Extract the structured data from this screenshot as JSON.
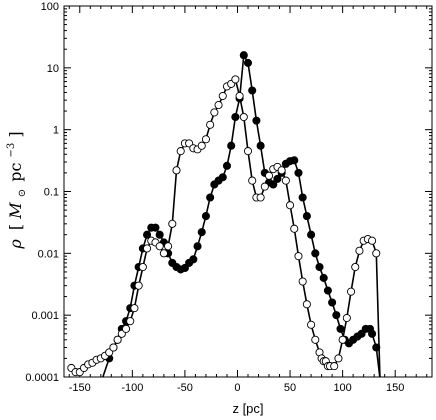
{
  "chart_data": {
    "type": "line",
    "title": "",
    "xlabel": "z [pc]",
    "ylabel_parts": {
      "rho": "ρ",
      "open": "[",
      "m": "M",
      "sun": "⊙",
      "pc": "pc",
      "exp": "−3",
      "close": "]"
    },
    "xlim": [
      -165,
      185
    ],
    "ylim": [
      0.0001,
      100
    ],
    "yscale": "log",
    "grid": false,
    "legend": "none",
    "xticks": [
      -150,
      -100,
      -50,
      0,
      50,
      100,
      150
    ],
    "xtick_labels": [
      "-150",
      "-100",
      "-50",
      "0",
      "50",
      "100",
      "150"
    ],
    "yticks": [
      0.0001,
      0.001,
      0.01,
      0.1,
      1,
      10,
      100
    ],
    "ytick_labels": [
      "0.0001",
      "0.001",
      "0.01",
      "0.1",
      "1",
      "10",
      "100"
    ],
    "series": [
      {
        "marker": "filled",
        "color": "#000000",
        "x": [
          -130,
          -122,
          -118,
          -114,
          -110,
          -106,
          -102,
          -98,
          -94,
          -90,
          -86,
          -82,
          -78,
          -74,
          -70,
          -66,
          -62,
          -58,
          -54,
          -50,
          -46,
          -42,
          -38,
          -34,
          -30,
          -26,
          -22,
          -18,
          -14,
          -10,
          -6,
          -2,
          2,
          6,
          10,
          14,
          18,
          22,
          26,
          30,
          34,
          38,
          42,
          46,
          50,
          54,
          58,
          62,
          66,
          70,
          74,
          78,
          82,
          86,
          90,
          94,
          98,
          102,
          106,
          110,
          114,
          118,
          122,
          126,
          128,
          132,
          136
        ],
        "y": [
          8e-05,
          0.0002,
          0.0003,
          0.0004,
          0.0006,
          0.0008,
          0.0013,
          0.003,
          0.006,
          0.012,
          0.02,
          0.026,
          0.026,
          0.02,
          0.015,
          0.01,
          0.007,
          0.006,
          0.0055,
          0.0058,
          0.007,
          0.008,
          0.013,
          0.022,
          0.04,
          0.08,
          0.13,
          0.15,
          0.17,
          0.26,
          0.55,
          1.6,
          3.2,
          16,
          12,
          4.3,
          1.4,
          0.55,
          0.2,
          0.14,
          0.13,
          0.16,
          0.2,
          0.28,
          0.31,
          0.32,
          0.2,
          0.08,
          0.04,
          0.02,
          0.01,
          0.006,
          0.004,
          0.0025,
          0.0016,
          0.001,
          0.0006,
          0.0004,
          0.00035,
          0.0004,
          0.00045,
          0.0005,
          0.0006,
          0.0006,
          0.0005,
          0.0003,
          8e-05
        ]
      },
      {
        "marker": "open",
        "color": "#000000",
        "x": [
          -158,
          -154,
          -150,
          -146,
          -142,
          -138,
          -134,
          -130,
          -126,
          -122,
          -118,
          -114,
          -110,
          -106,
          -102,
          -98,
          -94,
          -90,
          -86,
          -82,
          -78,
          -74,
          -70,
          -66,
          -62,
          -58,
          -54,
          -50,
          -46,
          -42,
          -38,
          -34,
          -30,
          -26,
          -22,
          -18,
          -14,
          -10,
          -6,
          -2,
          2,
          6,
          10,
          14,
          18,
          22,
          26,
          30,
          34,
          38,
          42,
          46,
          50,
          54,
          58,
          62,
          66,
          70,
          74,
          78,
          80,
          82,
          84,
          86,
          88,
          92,
          96,
          100,
          104,
          108,
          112,
          116,
          120,
          124,
          128,
          132,
          136
        ],
        "y": [
          0.00014,
          0.00012,
          0.00012,
          0.00014,
          0.00016,
          0.00017,
          0.00019,
          0.0002,
          0.00022,
          0.00025,
          0.0003,
          0.0004,
          0.0005,
          0.0006,
          0.0008,
          0.0013,
          0.003,
          0.006,
          0.012,
          0.016,
          0.015,
          0.013,
          0.01,
          0.013,
          0.03,
          0.22,
          0.45,
          0.6,
          0.6,
          0.5,
          0.48,
          0.55,
          0.7,
          1.2,
          1.9,
          2.5,
          3.5,
          5,
          5.5,
          6.5,
          3.5,
          1.6,
          0.45,
          0.15,
          0.08,
          0.08,
          0.12,
          0.18,
          0.23,
          0.25,
          0.22,
          0.15,
          0.06,
          0.025,
          0.009,
          0.0035,
          0.0015,
          0.0007,
          0.0004,
          0.00025,
          0.0002,
          0.00018,
          0.00018,
          0.00015,
          0.00015,
          0.00015,
          0.0002,
          0.0004,
          0.0009,
          0.0024,
          0.006,
          0.011,
          0.016,
          0.017,
          0.016,
          0.01,
          5e-05
        ]
      }
    ]
  }
}
